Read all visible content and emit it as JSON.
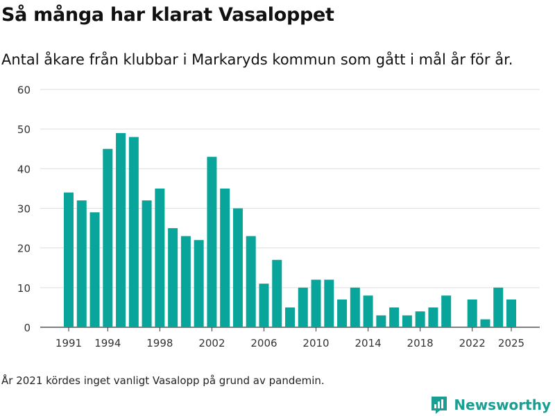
{
  "header": {
    "title": "Så många har klarat Vasaloppet",
    "subtitle": "Antal åkare från klubbar i Markaryds kommun som gått i mål år för år."
  },
  "footnote": "År 2021 kördes inget vanligt Vasalopp på grund av pandemin.",
  "brand": {
    "name": "Newsworthy",
    "color": "#1a9e92"
  },
  "chart_data": {
    "type": "bar",
    "title": "",
    "xlabel": "",
    "ylabel": "",
    "ylim": [
      0,
      60
    ],
    "yticks": [
      0,
      10,
      20,
      30,
      40,
      50,
      60
    ],
    "x_tick_labels": [
      "1991",
      "1994",
      "1998",
      "2002",
      "2006",
      "2010",
      "2014",
      "2018",
      "2022",
      "2025"
    ],
    "grid": true,
    "bar_color": "#0aa59a",
    "categories": [
      1991,
      1992,
      1993,
      1994,
      1995,
      1996,
      1997,
      1998,
      1999,
      2000,
      2001,
      2002,
      2003,
      2004,
      2005,
      2006,
      2007,
      2008,
      2009,
      2010,
      2011,
      2012,
      2013,
      2014,
      2015,
      2016,
      2017,
      2018,
      2019,
      2020,
      2021,
      2022,
      2023,
      2024,
      2025
    ],
    "values": [
      34,
      32,
      29,
      45,
      49,
      48,
      32,
      35,
      25,
      23,
      22,
      43,
      35,
      30,
      23,
      11,
      17,
      5,
      10,
      12,
      12,
      7,
      10,
      8,
      3,
      5,
      3,
      4,
      5,
      8,
      null,
      7,
      2,
      10,
      7
    ]
  }
}
